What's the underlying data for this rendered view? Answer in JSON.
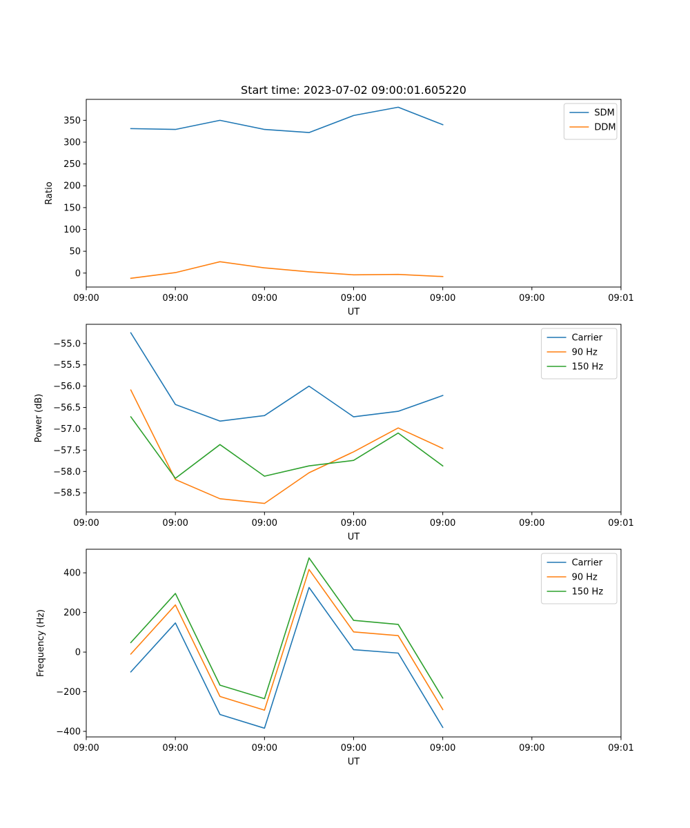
{
  "figure": {
    "title": "Start time: 2023-07-02 09:00:01.605220"
  },
  "colors": {
    "tab_blue": "#1f77b4",
    "tab_orange": "#ff7f0e",
    "tab_green": "#2ca02c"
  },
  "chart_data": [
    {
      "type": "line",
      "xlabel": "UT",
      "ylabel": "Ratio",
      "xlim": [
        0,
        12
      ],
      "ylim": [
        -32,
        398
      ],
      "x": [
        1,
        2,
        3,
        4,
        5,
        6,
        7,
        8
      ],
      "xticks": [
        {
          "value": 0,
          "label": "09:00"
        },
        {
          "value": 2,
          "label": "09:00"
        },
        {
          "value": 4,
          "label": "09:00"
        },
        {
          "value": 6,
          "label": "09:00"
        },
        {
          "value": 8,
          "label": "09:00"
        },
        {
          "value": 10,
          "label": "09:00"
        },
        {
          "value": 12,
          "label": "09:01"
        }
      ],
      "yticks": [
        {
          "value": 0,
          "label": "0"
        },
        {
          "value": 50,
          "label": "50"
        },
        {
          "value": 100,
          "label": "100"
        },
        {
          "value": 150,
          "label": "150"
        },
        {
          "value": 200,
          "label": "200"
        },
        {
          "value": 250,
          "label": "250"
        },
        {
          "value": 300,
          "label": "300"
        },
        {
          "value": 350,
          "label": "350"
        }
      ],
      "legend_position": "top-right",
      "series": [
        {
          "name": "SDM",
          "color": "#1f77b4",
          "values": [
            331,
            329,
            350,
            329,
            322,
            361,
            380,
            340
          ]
        },
        {
          "name": "DDM",
          "color": "#ff7f0e",
          "values": [
            -12,
            1,
            26,
            12,
            3,
            -4,
            -3,
            -8
          ]
        }
      ]
    },
    {
      "type": "line",
      "xlabel": "UT",
      "ylabel": "Power (dB)",
      "xlim": [
        0,
        12
      ],
      "ylim": [
        -58.95,
        -54.55
      ],
      "x": [
        1,
        2,
        3,
        4,
        5,
        6,
        7,
        8
      ],
      "xticks": [
        {
          "value": 0,
          "label": "09:00"
        },
        {
          "value": 2,
          "label": "09:00"
        },
        {
          "value": 4,
          "label": "09:00"
        },
        {
          "value": 6,
          "label": "09:00"
        },
        {
          "value": 8,
          "label": "09:00"
        },
        {
          "value": 10,
          "label": "09:00"
        },
        {
          "value": 12,
          "label": "09:01"
        }
      ],
      "yticks": [
        {
          "value": -58.5,
          "label": "−58.5"
        },
        {
          "value": -58.0,
          "label": "−58.0"
        },
        {
          "value": -57.5,
          "label": "−57.5"
        },
        {
          "value": -57.0,
          "label": "−57.0"
        },
        {
          "value": -56.5,
          "label": "−56.5"
        },
        {
          "value": -56.0,
          "label": "−56.0"
        },
        {
          "value": -55.5,
          "label": "−55.5"
        },
        {
          "value": -55.0,
          "label": "−55.0"
        }
      ],
      "legend_position": "top-right",
      "series": [
        {
          "name": "Carrier",
          "color": "#1f77b4",
          "values": [
            -54.75,
            -56.43,
            -56.82,
            -56.69,
            -56.0,
            -56.72,
            -56.59,
            -56.22
          ]
        },
        {
          "name": "90 Hz",
          "color": "#ff7f0e",
          "values": [
            -56.09,
            -58.19,
            -58.64,
            -58.75,
            -58.03,
            -57.54,
            -56.98,
            -57.46
          ]
        },
        {
          "name": "150 Hz",
          "color": "#2ca02c",
          "values": [
            -56.72,
            -58.16,
            -57.37,
            -58.11,
            -57.87,
            -57.74,
            -57.1,
            -57.87
          ]
        }
      ]
    },
    {
      "type": "line",
      "xlabel": "UT",
      "ylabel": "Frequency (Hz)",
      "xlim": [
        0,
        12
      ],
      "ylim": [
        -428,
        519
      ],
      "x": [
        1,
        2,
        3,
        4,
        5,
        6,
        7,
        8
      ],
      "xticks": [
        {
          "value": 0,
          "label": "09:00"
        },
        {
          "value": 2,
          "label": "09:00"
        },
        {
          "value": 4,
          "label": "09:00"
        },
        {
          "value": 6,
          "label": "09:00"
        },
        {
          "value": 8,
          "label": "09:00"
        },
        {
          "value": 10,
          "label": "09:00"
        },
        {
          "value": 12,
          "label": "09:01"
        }
      ],
      "yticks": [
        {
          "value": -400,
          "label": "−400"
        },
        {
          "value": -200,
          "label": "−200"
        },
        {
          "value": 0,
          "label": "0"
        },
        {
          "value": 200,
          "label": "200"
        },
        {
          "value": 400,
          "label": "400"
        }
      ],
      "legend_position": "top-right",
      "series": [
        {
          "name": "Carrier",
          "color": "#1f77b4",
          "values": [
            -100,
            147,
            -315,
            -384,
            326,
            12,
            -5,
            -380
          ]
        },
        {
          "name": "90 Hz",
          "color": "#ff7f0e",
          "values": [
            -10,
            238,
            -224,
            -293,
            417,
            102,
            83,
            -290
          ]
        },
        {
          "name": "150 Hz",
          "color": "#2ca02c",
          "values": [
            48,
            296,
            -167,
            -235,
            475,
            160,
            140,
            -232
          ]
        }
      ]
    }
  ]
}
